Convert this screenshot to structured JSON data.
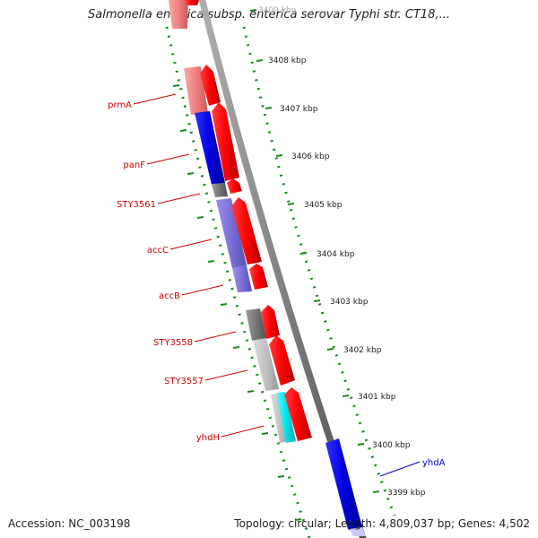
{
  "title": "Salmonella enterica subsp. enterica serovar Typhi str. CT18,...",
  "footer": {
    "accession": "Accession: NC_003198",
    "summary": "Topology: circular; Length: 4,809,037 bp; Genes: 4,502"
  },
  "colors": {
    "forward_cds": "#ff0000",
    "reverse_cds": "#0000dd",
    "lavender": "#7b6fd8",
    "gray": "#777777",
    "light_gray": "#c0c0c0",
    "cyan": "#00e5ee",
    "pink": "#f08080",
    "ticks": "#1a8a1a",
    "label_red": "#cc0000",
    "label_blue": "#0000cc",
    "backbone": "#808080"
  },
  "ticks": [
    "3409 kbp",
    "3408 kbp",
    "3407 kbp",
    "3406 kbp",
    "3405 kbp",
    "3404 kbp",
    "3403 kbp",
    "3402 kbp",
    "3401 kbp",
    "3400 kbp",
    "3399 kbp"
  ],
  "gene_labels": [
    {
      "text": "prmA",
      "color": "red"
    },
    {
      "text": "panF",
      "color": "red"
    },
    {
      "text": "STY3561",
      "color": "red"
    },
    {
      "text": "accC",
      "color": "red"
    },
    {
      "text": "accB",
      "color": "red"
    },
    {
      "text": "STY3558",
      "color": "red"
    },
    {
      "text": "STY3557",
      "color": "red"
    },
    {
      "text": "yhdH",
      "color": "red"
    },
    {
      "text": "yhdA",
      "color": "blue"
    }
  ]
}
